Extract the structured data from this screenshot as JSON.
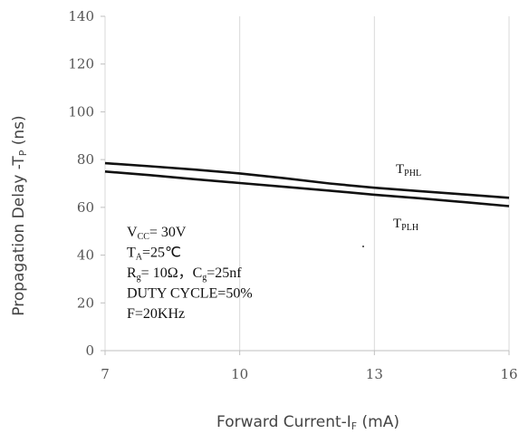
{
  "chart_data": {
    "type": "line",
    "xlabel": {
      "main": "Forward Current-I",
      "sub": "F",
      "unit": " (mA)"
    },
    "ylabel": {
      "main": "Propagation Delay -T",
      "sub": "P",
      "unit": " (ns)"
    },
    "xlim": [
      7,
      16
    ],
    "ylim": [
      0,
      140
    ],
    "x_ticks": [
      7,
      10,
      13,
      16
    ],
    "y_ticks": [
      0,
      20,
      40,
      60,
      80,
      100,
      120,
      140
    ],
    "grid": "vertical",
    "series": [
      {
        "name": "TPHL",
        "label_main": "T",
        "label_sub": "PHL",
        "x": [
          7,
          8,
          9,
          10,
          11,
          12,
          13,
          14,
          15,
          16
        ],
        "y": [
          78.5,
          77.2,
          75.8,
          74.2,
          72.2,
          70.0,
          68.2,
          66.8,
          65.4,
          64.0
        ]
      },
      {
        "name": "TPLH",
        "label_main": "T",
        "label_sub": "PLH",
        "x": [
          7,
          8,
          9,
          10,
          11,
          12,
          13,
          14,
          15,
          16
        ],
        "y": [
          75.0,
          73.5,
          71.8,
          70.2,
          68.6,
          67.0,
          65.3,
          63.8,
          62.2,
          60.5
        ]
      }
    ],
    "annotations": [
      {
        "parts": [
          {
            "t": "V"
          },
          {
            "t": "CC",
            "sub": true
          },
          {
            "t": "= 30V"
          }
        ]
      },
      {
        "parts": [
          {
            "t": "T"
          },
          {
            "t": "A",
            "sub": true
          },
          {
            "t": "=25℃"
          }
        ]
      },
      {
        "parts": [
          {
            "t": "R"
          },
          {
            "t": "g",
            "sub": true
          },
          {
            "t": "= 10Ω，C"
          },
          {
            "t": "g",
            "sub": true
          },
          {
            "t": "=25nf"
          }
        ]
      },
      {
        "parts": [
          {
            "t": "DUTY CYCLE=50%"
          }
        ]
      },
      {
        "parts": [
          {
            "t": "F=20KHz"
          }
        ]
      }
    ]
  }
}
